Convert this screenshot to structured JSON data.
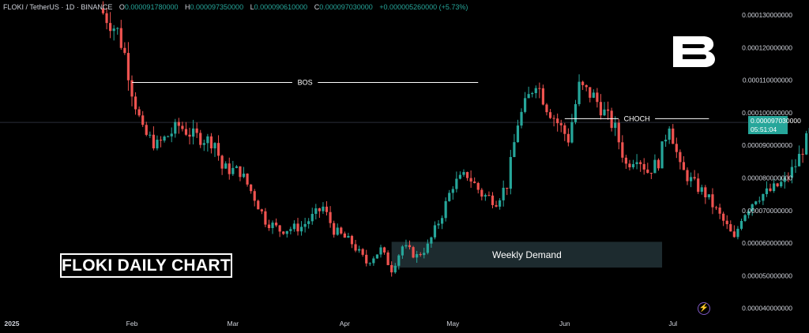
{
  "header": {
    "symbol": "FLOKI / TetherUS · 1D · BINANCE",
    "open_label": "O",
    "open": "0.000091780000",
    "high_label": "H",
    "high": "0.000097350000",
    "low_label": "L",
    "low": "0.000090610000",
    "close_label": "C",
    "close": "0.000097030000",
    "change": "+0.000005260000 (+5.73%)"
  },
  "price_tag": {
    "price": "0.000097030000",
    "countdown": "05:51:04"
  },
  "title_box": "FLOKI DAILY CHART",
  "icons": {
    "logo": "brand-b-logo-icon",
    "bolt": "lightning-bolt-icon"
  },
  "colors": {
    "background": "#000000",
    "up": "#26a69a",
    "down": "#ef5350",
    "text": "#d1d4dc",
    "demand_zone": "#1d2b2f"
  },
  "chart_data": {
    "type": "candlestick",
    "title": "FLOKI DAILY CHART",
    "ylim": [
      3.85e-05,
      0.000134
    ],
    "y_ticks": [
      "0.000130000000",
      "0.000120000000",
      "0.000110000000",
      "0.000100000000",
      "0.000090000000",
      "0.000080000000",
      "0.000070000000",
      "0.000060000000",
      "0.000050000000",
      "0.000040000000"
    ],
    "x_labels": [
      "2025",
      "Feb",
      "Mar",
      "Apr",
      "May",
      "Jun",
      "Jul"
    ],
    "grid": false,
    "last_price_line": 9.703e-05,
    "annotations": {
      "bos": {
        "label": "BOS",
        "price": 0.0001093,
        "from": "Feb 01",
        "to": "May 08"
      },
      "choch": {
        "label": "CHOCH",
        "price": 9.82e-05,
        "from": "Jun 01",
        "to": "Jul 11"
      },
      "weekly_demand": {
        "label": "Weekly Demand",
        "top": 6.04e-05,
        "bottom": 5.25e-05,
        "from": "Apr 14",
        "to": "Jun 28"
      }
    },
    "anchors": [
      [
        "Jan 23",
        0.000132
      ],
      [
        "Jan 28",
        0.000125
      ],
      [
        "Jan 30",
        0.000118
      ],
      [
        "Feb 01",
        0.000107
      ],
      [
        "Feb 04",
        9.4e-05
      ],
      [
        "Feb 08",
        9e-05
      ],
      [
        "Feb 14",
        9.6e-05
      ],
      [
        "Feb 18",
        9.3e-05
      ],
      [
        "Feb 24",
        9.1e-05
      ],
      [
        "Feb 26",
        8.3e-05
      ],
      [
        "Mar 03",
        8.2e-05
      ],
      [
        "Mar 07",
        7.4e-05
      ],
      [
        "Mar 10",
        6.7e-05
      ],
      [
        "Mar 14",
        6.4e-05
      ],
      [
        "Mar 20",
        6.5e-05
      ],
      [
        "Mar 26",
        7.1e-05
      ],
      [
        "Mar 29",
        6.4e-05
      ],
      [
        "Apr 03",
        6e-05
      ],
      [
        "Apr 07",
        5.4e-05
      ],
      [
        "Apr 11",
        5.8e-05
      ],
      [
        "Apr 14",
        5.2e-05
      ],
      [
        "Apr 17",
        5.9e-05
      ],
      [
        "Apr 21",
        5.6e-05
      ],
      [
        "Apr 24",
        5.9e-05
      ],
      [
        "Apr 28",
        6.9e-05
      ],
      [
        "May 01",
        7.8e-05
      ],
      [
        "May 05",
        8.1e-05
      ],
      [
        "May 09",
        7.5e-05
      ],
      [
        "May 13",
        7.3e-05
      ],
      [
        "May 16",
        7.8e-05
      ],
      [
        "May 19",
        9.7e-05
      ],
      [
        "May 24",
        0.00011
      ],
      [
        "May 27",
        0.000102
      ],
      [
        "May 30",
        9.7e-05
      ],
      [
        "Jun 02",
        9.2e-05
      ],
      [
        "Jun 05",
        0.000108
      ],
      [
        "Jun 09",
        0.000105
      ],
      [
        "Jun 12",
        0.0001
      ],
      [
        "Jun 15",
        9.5e-05
      ],
      [
        "Jun 18",
        8.4e-05
      ],
      [
        "Jun 21",
        8.7e-05
      ],
      [
        "Jun 24",
        8.2e-05
      ],
      [
        "Jun 27",
        8.5e-05
      ],
      [
        "Jun 30",
        9.7e-05
      ],
      [
        "Jul 03",
        8.3e-05
      ],
      [
        "Jul 07",
        7.8e-05
      ],
      [
        "Jul 10",
        7.5e-05
      ],
      [
        "Jul 13",
        7e-05
      ],
      [
        "Jul 16",
        6.5e-05
      ],
      [
        "Jul 18",
        6.1e-05
      ],
      [
        "Jul 20",
        6.8e-05
      ],
      [
        "Jul 24",
        7.4e-05
      ],
      [
        "Jul 28",
        7.6e-05
      ],
      [
        "Aug 01",
        7.9e-05
      ],
      [
        "Aug 04",
        8.4e-05
      ],
      [
        "Aug 08",
        9.4e-05
      ],
      [
        "Aug 11",
        9.7e-05
      ]
    ]
  }
}
